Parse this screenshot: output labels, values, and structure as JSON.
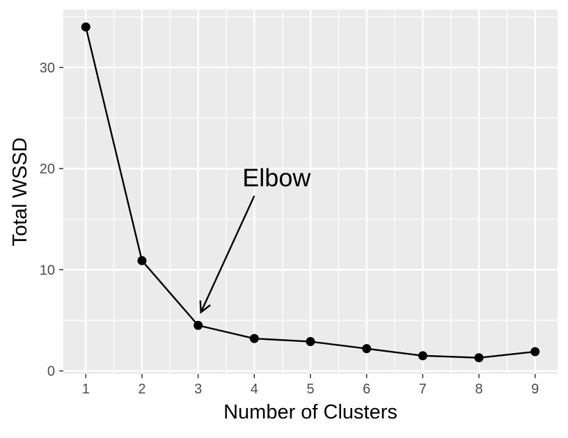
{
  "chart_data": {
    "type": "line",
    "title": "",
    "xlabel": "Number of Clusters",
    "ylabel": "Total WSSD",
    "x": [
      1,
      2,
      3,
      4,
      5,
      6,
      7,
      8,
      9
    ],
    "series": [
      {
        "values": [
          34.0,
          10.9,
          4.5,
          3.2,
          2.9,
          2.2,
          1.5,
          1.3,
          1.9
        ]
      }
    ],
    "xlim": [
      0.6,
      9.4
    ],
    "ylim": [
      -0.3,
      35.7
    ],
    "x_ticks": [
      1,
      2,
      3,
      4,
      5,
      6,
      7,
      8,
      9
    ],
    "y_ticks": [
      0,
      10,
      20,
      30
    ],
    "grid": true,
    "legend": "none",
    "annotations": [
      {
        "text": "Elbow",
        "arrow_from": {
          "x": 4.0,
          "y": 17.3
        },
        "arrow_to": {
          "x": 3.05,
          "y": 5.8
        }
      }
    ],
    "colors": {
      "panel_background": "#ebebeb",
      "grid": "#ffffff",
      "line": "#000000",
      "points": "#000000",
      "tick_text": "#4d4d4d",
      "axis_text": "#000000"
    }
  }
}
